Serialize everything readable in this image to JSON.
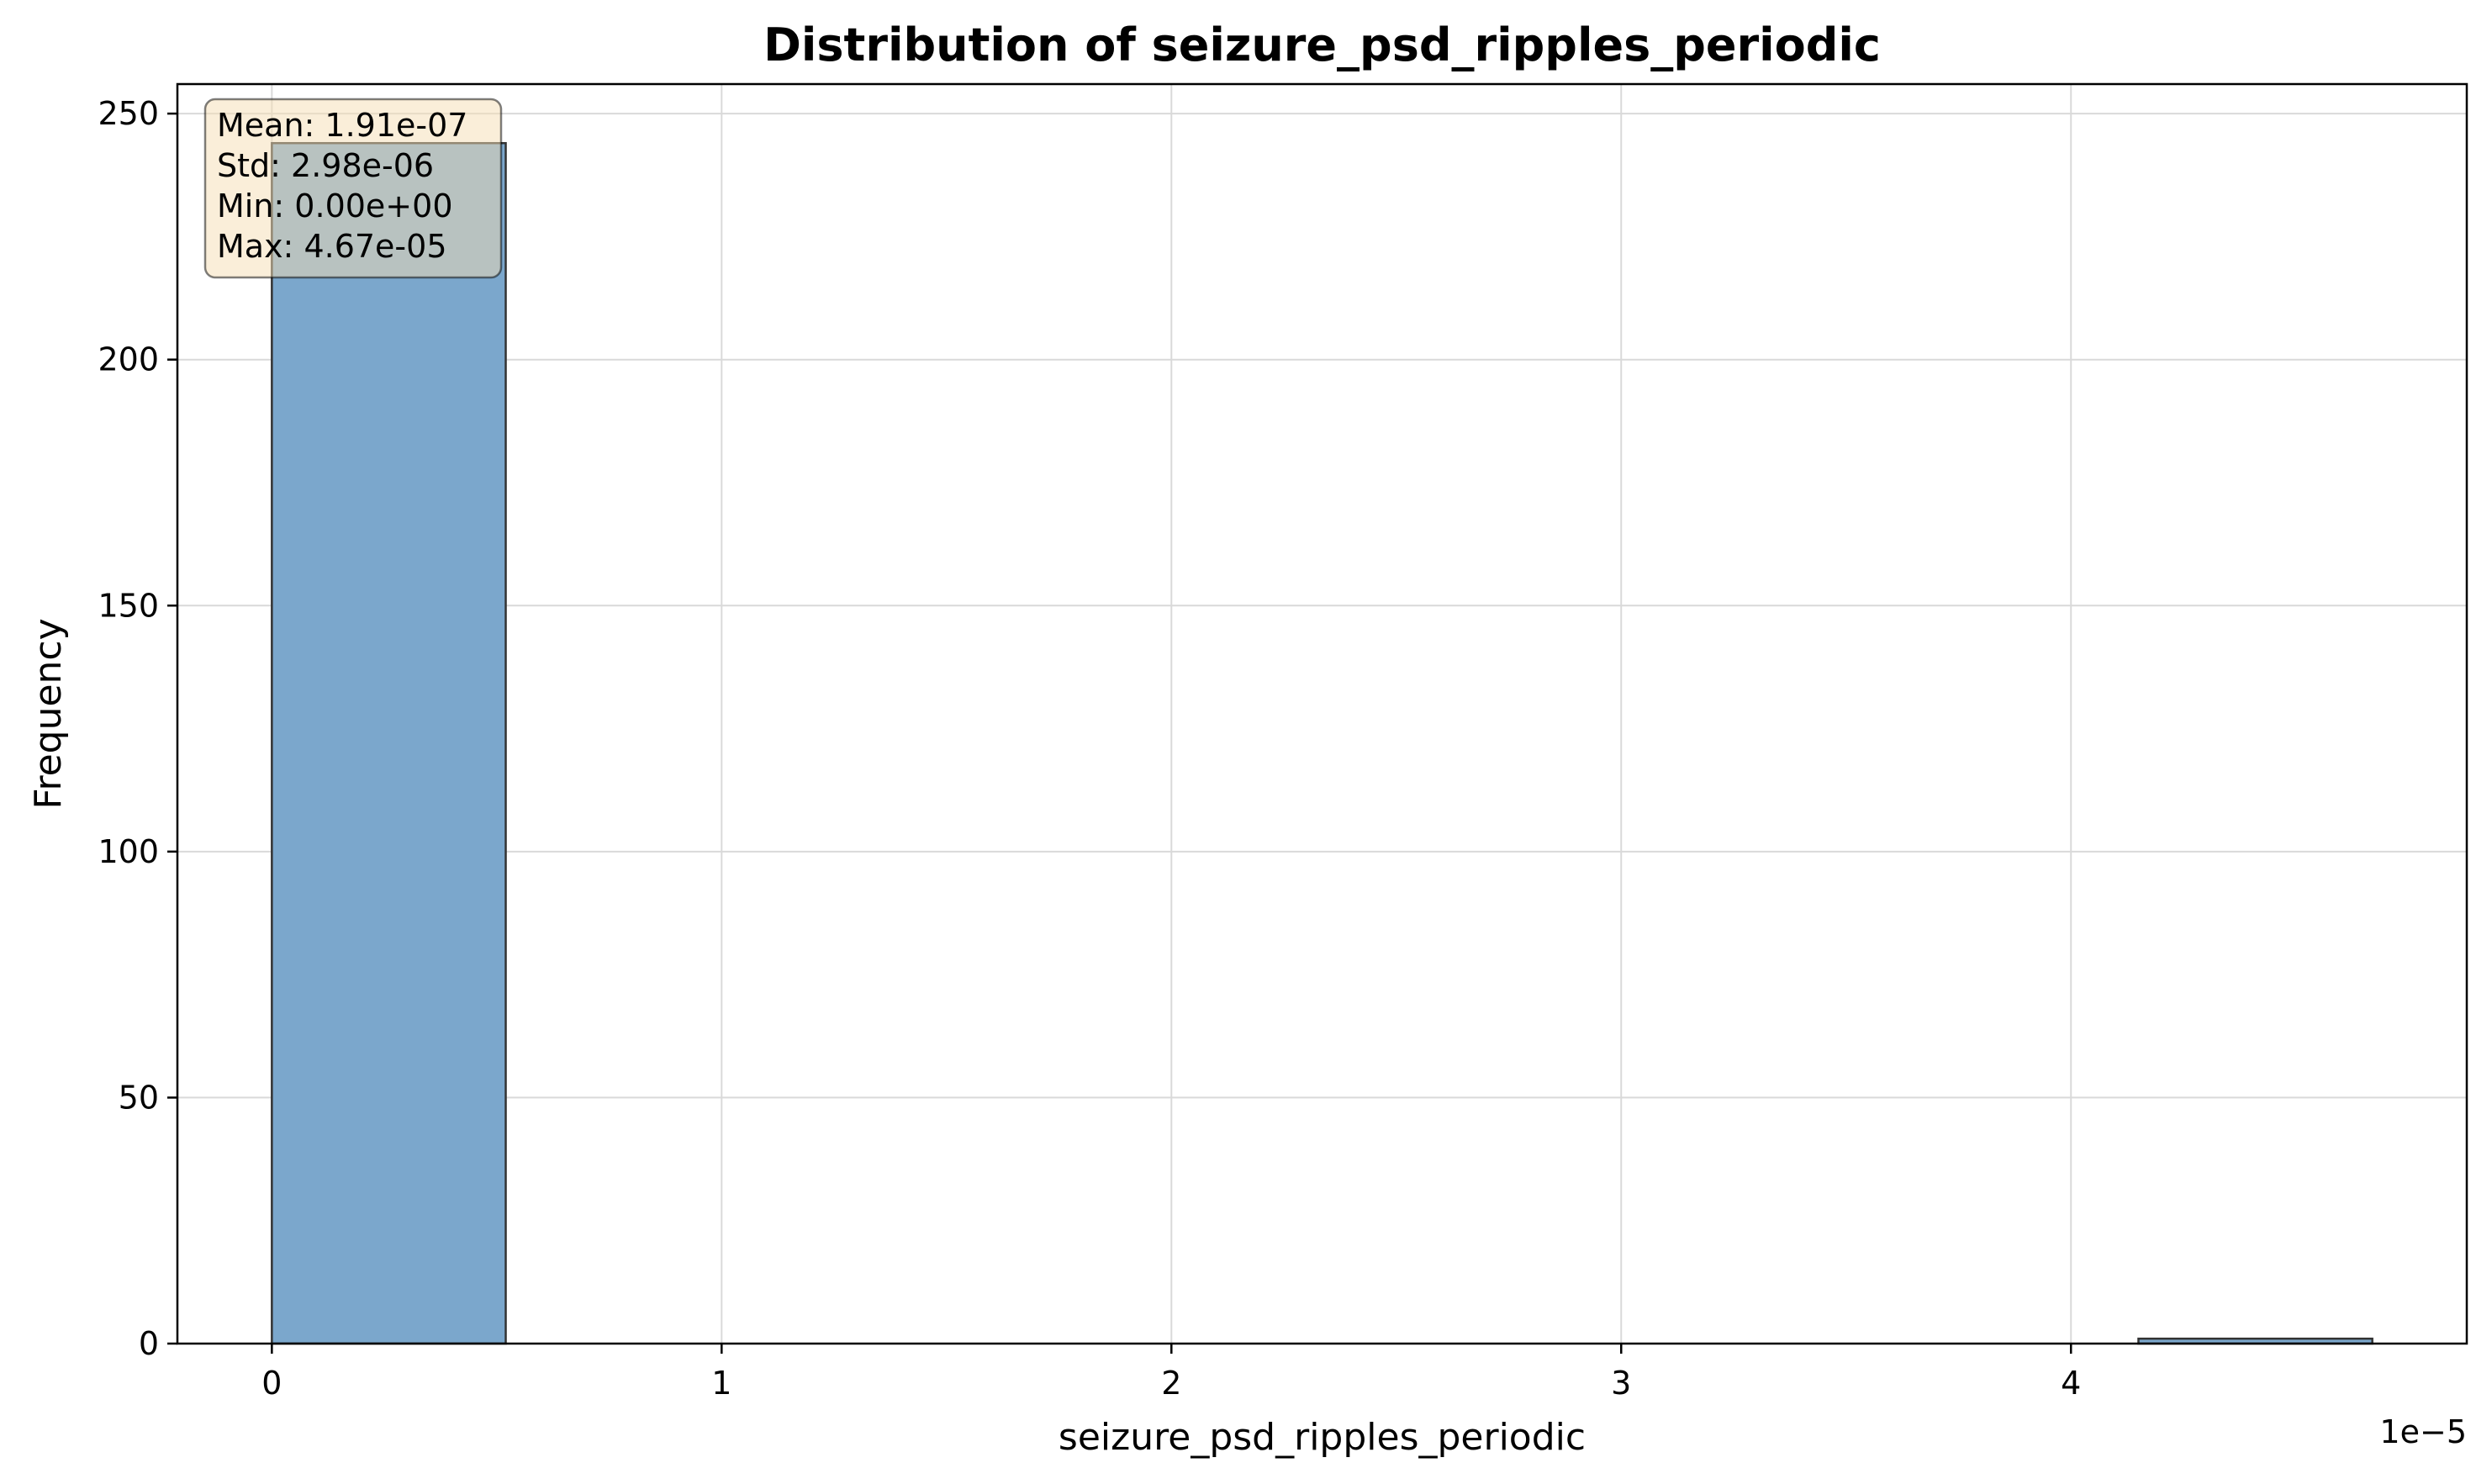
{
  "chart_data": {
    "type": "bar",
    "title": "Distribution of seizure_psd_ripples_periodic",
    "xlabel": "seizure_psd_ripples_periodic",
    "ylabel": "Frequency",
    "x_offset_text": "1e−5",
    "xlim": [
      -0.21,
      4.88
    ],
    "ylim": [
      0,
      256
    ],
    "xticks": [
      0,
      1,
      2,
      3,
      4
    ],
    "xtick_labels": [
      "0",
      "1",
      "2",
      "3",
      "4"
    ],
    "yticks": [
      0,
      50,
      100,
      150,
      200,
      250
    ],
    "ytick_labels": [
      "0",
      "50",
      "100",
      "150",
      "200",
      "250"
    ],
    "grid": true,
    "bins": [
      {
        "start": 0.0,
        "end": 0.52,
        "count": 244
      },
      {
        "start": 4.15,
        "end": 4.67,
        "count": 1
      }
    ],
    "bar_color": "#7ba7cc",
    "bar_edge_color": "#333333",
    "stats_box": {
      "lines": [
        "Mean: 1.91e-07",
        "Std: 2.98e-06",
        "Min: 0.00e+00",
        "Max: 4.67e-05"
      ],
      "placement": "top-left",
      "background": "#f5deb3"
    }
  }
}
